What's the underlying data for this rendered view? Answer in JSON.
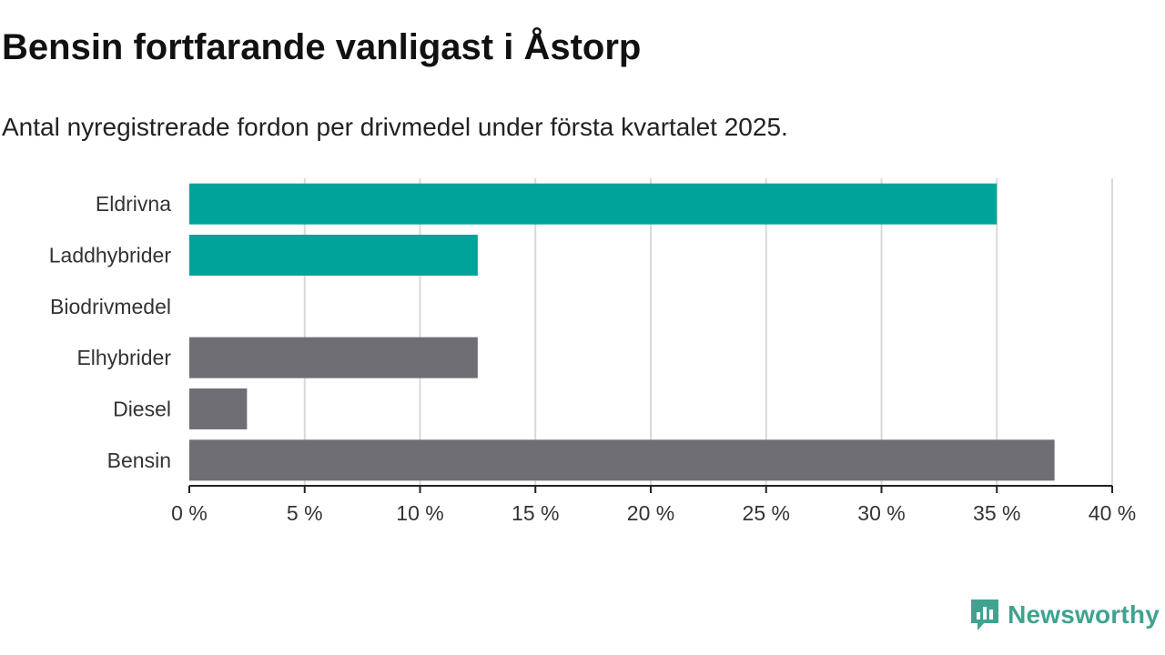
{
  "title": "Bensin fortfarande vanligast i Åstorp",
  "subtitle": "Antal nyregistrerade fordon per drivmedel under första kvartalet 2025.",
  "brand": {
    "name": "Newsworthy",
    "icon": "newsworthy-logo-icon",
    "color": "#3fa38f"
  },
  "colors": {
    "highlight": "#00a39a",
    "default": "#6f6e74",
    "grid": "#d9d9d9",
    "axis": "#222222"
  },
  "chart_data": {
    "type": "bar",
    "orientation": "horizontal",
    "categories": [
      "Eldrivna",
      "Laddhybrider",
      "Biodrivmedel",
      "Elhybrider",
      "Diesel",
      "Bensin"
    ],
    "values": [
      35,
      12.5,
      0,
      12.5,
      2.5,
      37.5
    ],
    "highlighted": [
      true,
      true,
      true,
      false,
      false,
      false
    ],
    "xlim": [
      0,
      40
    ],
    "ticks": [
      0,
      5,
      10,
      15,
      20,
      25,
      30,
      35,
      40
    ],
    "tick_labels": [
      "0 %",
      "5 %",
      "10 %",
      "15 %",
      "20 %",
      "25 %",
      "30 %",
      "35 %",
      "40 %"
    ],
    "grid": true
  }
}
